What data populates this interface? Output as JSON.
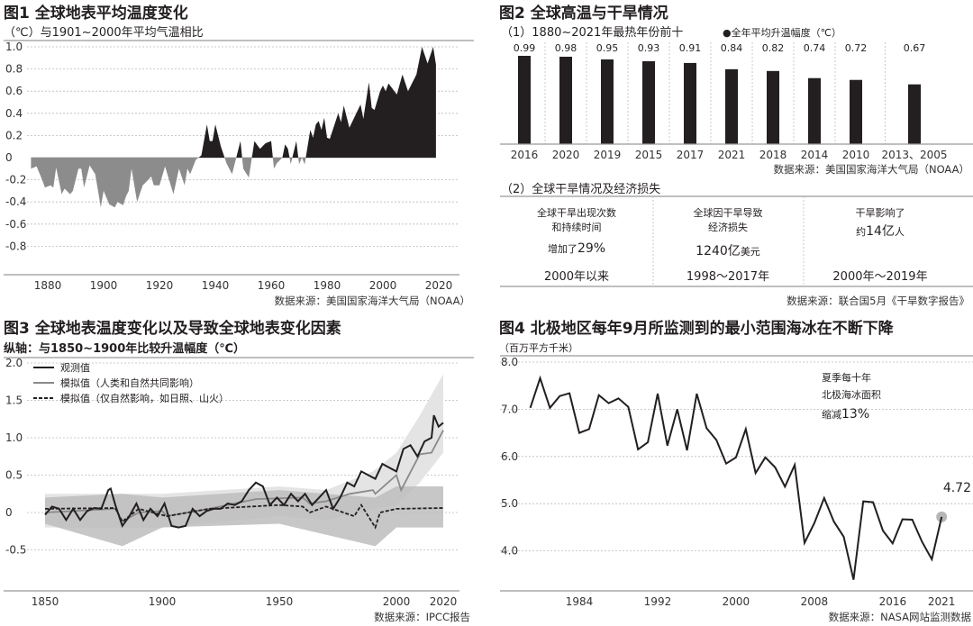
{
  "fig1": {
    "title": "图1 全球地表平均温度变化",
    "subtitle": "（℃）与1901~2000年平均气温相比",
    "source": "数据来源：美国国家海洋大气局（NOAA）",
    "colors": {
      "positive": "#231f20",
      "negative": "#8c8c8c"
    },
    "chart_data": {
      "type": "area",
      "ylim": [
        -0.8,
        1.0
      ],
      "yticks": [
        "1.0",
        "0.8",
        "0.6",
        "0.4",
        "0.2",
        "0",
        "-0.2",
        "-0.4",
        "-0.6",
        "-0.8"
      ],
      "ytick_values": [
        1.0,
        0.8,
        0.6,
        0.4,
        0.2,
        0,
        -0.2,
        -0.4,
        -0.6,
        -0.8
      ],
      "xticks": [
        "1880",
        "1900",
        "1920",
        "1940",
        "1960",
        "1980",
        "2000",
        "2020"
      ],
      "xtick_values": [
        1880,
        1900,
        1920,
        1940,
        1960,
        1980,
        2000,
        2020
      ],
      "grid": true,
      "points": [
        [
          1874,
          -0.1
        ],
        [
          1876,
          -0.08
        ],
        [
          1878,
          -0.2
        ],
        [
          1879,
          -0.27
        ],
        [
          1881,
          -0.25
        ],
        [
          1882,
          -0.27
        ],
        [
          1883,
          -0.09
        ],
        [
          1885,
          -0.33
        ],
        [
          1886,
          -0.28
        ],
        [
          1888,
          -0.33
        ],
        [
          1889,
          -0.3
        ],
        [
          1891,
          -0.1
        ],
        [
          1892,
          -0.1
        ],
        [
          1893,
          -0.27
        ],
        [
          1895,
          -0.07
        ],
        [
          1897,
          -0.15
        ],
        [
          1899,
          -0.45
        ],
        [
          1900,
          -0.3
        ],
        [
          1902,
          -0.42
        ],
        [
          1904,
          -0.45
        ],
        [
          1905,
          -0.4
        ],
        [
          1907,
          -0.43
        ],
        [
          1908,
          -0.35
        ],
        [
          1909,
          -0.3
        ],
        [
          1910,
          -0.1
        ],
        [
          1912,
          -0.4
        ],
        [
          1914,
          -0.25
        ],
        [
          1916,
          -0.2
        ],
        [
          1917,
          -0.17
        ],
        [
          1918,
          -0.25
        ],
        [
          1920,
          -0.25
        ],
        [
          1922,
          -0.08
        ],
        [
          1925,
          -0.33
        ],
        [
          1927,
          -0.1
        ],
        [
          1929,
          -0.25
        ],
        [
          1930,
          -0.1
        ],
        [
          1931,
          -0.15
        ],
        [
          1933,
          -0.02
        ],
        [
          1935,
          0.02
        ],
        [
          1937,
          0.3
        ],
        [
          1938,
          0.15
        ],
        [
          1939,
          0.15
        ],
        [
          1940,
          0.3
        ],
        [
          1942,
          0.1
        ],
        [
          1944,
          -0.05
        ],
        [
          1946,
          -0.15
        ],
        [
          1948,
          0.05
        ],
        [
          1949,
          0.15
        ],
        [
          1950,
          -0.1
        ],
        [
          1952,
          -0.18
        ],
        [
          1954,
          0.15
        ],
        [
          1956,
          0.08
        ],
        [
          1958,
          0.13
        ],
        [
          1960,
          0.15
        ],
        [
          1961,
          -0.1
        ],
        [
          1962,
          -0.05
        ],
        [
          1964,
          0
        ],
        [
          1965,
          0.12
        ],
        [
          1966,
          0.08
        ],
        [
          1967,
          -0.06
        ],
        [
          1969,
          0.15
        ],
        [
          1970,
          -0.06
        ],
        [
          1971,
          0
        ],
        [
          1972,
          -0.06
        ],
        [
          1974,
          0.25
        ],
        [
          1975,
          0.18
        ],
        [
          1976,
          0.3
        ],
        [
          1977,
          0.33
        ],
        [
          1978,
          0.25
        ],
        [
          1979,
          0.36
        ],
        [
          1980,
          0.18
        ],
        [
          1981,
          0.17
        ],
        [
          1984,
          0.4
        ],
        [
          1985,
          0.32
        ],
        [
          1986,
          0.47
        ],
        [
          1988,
          0.27
        ],
        [
          1992,
          0.48
        ],
        [
          1993,
          0.35
        ],
        [
          1995,
          0.68
        ],
        [
          1996,
          0.45
        ],
        [
          1997,
          0.43
        ],
        [
          1999,
          0.6
        ],
        [
          2000,
          0.65
        ],
        [
          2001,
          0.6
        ],
        [
          2002,
          0.67
        ],
        [
          2005,
          0.57
        ],
        [
          2007,
          0.75
        ],
        [
          2009,
          0.6
        ],
        [
          2012,
          0.75
        ],
        [
          2014,
          1.0
        ],
        [
          2016,
          0.85
        ],
        [
          2018,
          1.0
        ],
        [
          2019,
          0.84
        ]
      ]
    }
  },
  "fig2": {
    "title": "图2 全球高温与干旱情况",
    "part1_title": "（1）1880~2021年最热年份前十",
    "legend": "●全年平均升温幅度（℃）",
    "source1": "数据来源：美国国家海洋大气局（NOAA）",
    "chart_data": {
      "type": "bar",
      "categories": [
        "2016",
        "2020",
        "2019",
        "2015",
        "2017",
        "2021",
        "2018",
        "2014",
        "2010",
        "2013、2005"
      ],
      "values": [
        0.99,
        0.98,
        0.95,
        0.93,
        0.91,
        0.84,
        0.82,
        0.74,
        0.72,
        0.67
      ],
      "value_labels": [
        "0.99",
        "0.98",
        "0.95",
        "0.93",
        "0.91",
        "0.84",
        "0.82",
        "0.74",
        "0.72",
        "0.67"
      ],
      "color": "#231f20"
    },
    "part2_title": "（2）全球干旱情况及经济损失",
    "table": [
      {
        "line1": "全球干旱出现次数",
        "line2": "和持续时间",
        "prefix": "增加了",
        "value": "29%",
        "suffix": "",
        "period": "2000年以来"
      },
      {
        "line1": "全球因干旱导致",
        "line2": "经济损失",
        "prefix": "",
        "value": "1240亿",
        "suffix": "美元",
        "period": "1998～2017年"
      },
      {
        "line1": "干旱影响了",
        "line2": "",
        "prefix": "约",
        "value": "14亿",
        "suffix": "人",
        "period": "2000年～2019年"
      }
    ],
    "source2": "数据来源：联合国5月《干旱数字报告》"
  },
  "fig3": {
    "title": "图3 全球地表温度变化以及导致全球地表变化因素",
    "subtitle": "纵轴：与1850~1900年比较升温幅度（℃）",
    "source": "数据来源：IPCC报告",
    "chart_data": {
      "type": "line",
      "ylim": [
        -0.5,
        2.0
      ],
      "yticks": [
        "2.0",
        "1.5",
        "1.0",
        "0.5",
        "0",
        "-0.5"
      ],
      "ytick_values": [
        2.0,
        1.5,
        1.0,
        0.5,
        0,
        -0.5
      ],
      "xticks": [
        "1850",
        "1900",
        "1950",
        "2000",
        "2020"
      ],
      "xtick_values": [
        1850,
        1900,
        1950,
        2000,
        2020
      ],
      "grid": true,
      "legend_placement": "top-left",
      "series": [
        {
          "name": "观测值",
          "style": "solid",
          "color": "#231f20",
          "points": [
            [
              1850,
              -0.03
            ],
            [
              1853,
              0.08
            ],
            [
              1856,
              0.05
            ],
            [
              1859,
              -0.1
            ],
            [
              1862,
              0.05
            ],
            [
              1865,
              -0.1
            ],
            [
              1868,
              0.02
            ],
            [
              1871,
              0.06
            ],
            [
              1874,
              0.05
            ],
            [
              1877,
              0.3
            ],
            [
              1878,
              0.32
            ],
            [
              1880,
              0.1
            ],
            [
              1883,
              -0.18
            ],
            [
              1886,
              -0.05
            ],
            [
              1889,
              0.12
            ],
            [
              1892,
              -0.1
            ],
            [
              1895,
              0.05
            ],
            [
              1898,
              -0.05
            ],
            [
              1901,
              0.12
            ],
            [
              1904,
              -0.18
            ],
            [
              1907,
              -0.2
            ],
            [
              1910,
              -0.18
            ],
            [
              1913,
              0.05
            ],
            [
              1916,
              -0.05
            ],
            [
              1919,
              0.02
            ],
            [
              1922,
              0.05
            ],
            [
              1925,
              0.05
            ],
            [
              1928,
              0.12
            ],
            [
              1931,
              0.1
            ],
            [
              1934,
              0.15
            ],
            [
              1937,
              0.3
            ],
            [
              1940,
              0.4
            ],
            [
              1943,
              0.35
            ],
            [
              1946,
              0.1
            ],
            [
              1949,
              0.2
            ],
            [
              1952,
              0.1
            ],
            [
              1955,
              0.25
            ],
            [
              1958,
              0.15
            ],
            [
              1961,
              0.25
            ],
            [
              1964,
              0.1
            ],
            [
              1967,
              0.2
            ],
            [
              1970,
              0.3
            ],
            [
              1973,
              0.05
            ],
            [
              1976,
              0.2
            ],
            [
              1979,
              0.4
            ],
            [
              1982,
              0.35
            ],
            [
              1985,
              0.55
            ],
            [
              1988,
              0.5
            ],
            [
              1991,
              0.45
            ],
            [
              1994,
              0.65
            ],
            [
              1997,
              0.6
            ],
            [
              2000,
              0.55
            ],
            [
              2003,
              0.85
            ],
            [
              2006,
              0.9
            ],
            [
              2009,
              0.75
            ],
            [
              2012,
              0.95
            ],
            [
              2015,
              1.0
            ],
            [
              2016,
              1.3
            ],
            [
              2018,
              1.15
            ],
            [
              2020,
              1.2
            ]
          ]
        },
        {
          "name": "模拟值（人类和自然共同影响）",
          "style": "solid",
          "color": "#8a8a8a",
          "points": [
            [
              1850,
              0
            ],
            [
              1880,
              0.05
            ],
            [
              1883,
              -0.12
            ],
            [
              1890,
              0
            ],
            [
              1900,
              0.02
            ],
            [
              1902,
              -0.05
            ],
            [
              1920,
              0.05
            ],
            [
              1940,
              0.18
            ],
            [
              1960,
              0.2
            ],
            [
              1963,
              0.12
            ],
            [
              1970,
              0.15
            ],
            [
              1980,
              0.25
            ],
            [
              1990,
              0.3
            ],
            [
              1991,
              0.25
            ],
            [
              2000,
              0.5
            ],
            [
              2002,
              0.3
            ],
            [
              2010,
              0.78
            ],
            [
              2015,
              0.8
            ],
            [
              2020,
              1.1
            ]
          ],
          "band": [
            [
              1850,
              -0.2,
              0.25
            ],
            [
              1900,
              -0.2,
              0.25
            ],
            [
              1950,
              -0.05,
              0.35
            ],
            [
              1970,
              -0.1,
              0.3
            ],
            [
              1990,
              0.05,
              0.55
            ],
            [
              2000,
              0.1,
              0.8
            ],
            [
              2010,
              0.4,
              1.3
            ],
            [
              2020,
              0.8,
              1.85
            ]
          ]
        },
        {
          "name": "模拟值（仅自然影响，如日照、山火）",
          "style": "dashed",
          "color": "#231f20",
          "points": [
            [
              1850,
              0.05
            ],
            [
              1880,
              0.06
            ],
            [
              1883,
              -0.12
            ],
            [
              1890,
              0.05
            ],
            [
              1902,
              -0.05
            ],
            [
              1920,
              0.05
            ],
            [
              1950,
              0.1
            ],
            [
              1960,
              0.08
            ],
            [
              1963,
              0.0
            ],
            [
              1970,
              0.08
            ],
            [
              1982,
              -0.05
            ],
            [
              1985,
              0.1
            ],
            [
              1991,
              -0.2
            ],
            [
              1993,
              0.0
            ],
            [
              2000,
              0.05
            ],
            [
              2020,
              0.06
            ]
          ],
          "band": [
            [
              1850,
              -0.15,
              0.2
            ],
            [
              1883,
              -0.45,
              0.25
            ],
            [
              1900,
              -0.2,
              0.2
            ],
            [
              1950,
              -0.15,
              0.3
            ],
            [
              1991,
              -0.45,
              0.2
            ],
            [
              2000,
              -0.2,
              0.35
            ],
            [
              2020,
              -0.2,
              0.35
            ]
          ]
        }
      ]
    }
  },
  "fig4": {
    "title": "图4  北极地区每年9月所监测到的最小范围海冰在不断下降",
    "unit": "（百万平方千米）",
    "annotation": {
      "line1": "夏季每十年",
      "line2": "北极海冰面积",
      "prefix": "缩减",
      "value": "13%"
    },
    "last_label": "4.72",
    "source": "数据来源：NASA网站监测数据",
    "chart_data": {
      "type": "line",
      "ylim": [
        3.3,
        8.0
      ],
      "yticks": [
        "8.0",
        "7.0",
        "6.0",
        "5.0",
        "4.0"
      ],
      "ytick_values": [
        8,
        7,
        6,
        5,
        4
      ],
      "xticks": [
        "1984",
        "1992",
        "2000",
        "2008",
        "2016",
        "2021"
      ],
      "xtick_values": [
        1984,
        1992,
        2000,
        2008,
        2016,
        2021
      ],
      "grid": true,
      "x": [
        1979,
        1980,
        1981,
        1982,
        1983,
        1984,
        1985,
        1986,
        1987,
        1988,
        1989,
        1990,
        1991,
        1992,
        1993,
        1994,
        1995,
        1996,
        1997,
        1998,
        1999,
        2000,
        2001,
        2002,
        2003,
        2004,
        2005,
        2006,
        2007,
        2008,
        2009,
        2010,
        2011,
        2012,
        2013,
        2014,
        2015,
        2016,
        2017,
        2018,
        2019,
        2020,
        2021
      ],
      "values": [
        7.03,
        7.66,
        7.03,
        7.28,
        7.34,
        6.5,
        6.58,
        7.3,
        7.13,
        7.23,
        7.05,
        6.15,
        6.3,
        7.33,
        6.23,
        7.0,
        6.13,
        7.33,
        6.6,
        6.35,
        5.85,
        5.98,
        6.58,
        5.65,
        5.98,
        5.77,
        5.36,
        5.82,
        4.17,
        4.59,
        5.12,
        4.62,
        4.3,
        3.39,
        5.05,
        5.03,
        4.43,
        4.16,
        4.67,
        4.66,
        4.19,
        3.82,
        4.72
      ],
      "highlight_color": "#b5b5b5"
    }
  }
}
